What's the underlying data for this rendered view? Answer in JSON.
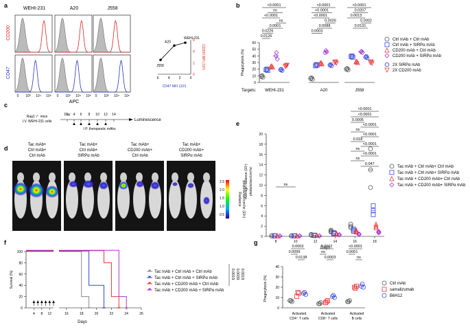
{
  "panels": {
    "a": {
      "label": "a",
      "cell_lines": [
        "WEHI-231",
        "A20",
        "J558"
      ],
      "row_labels": [
        "CD200",
        "CD47"
      ],
      "x_label": "APC",
      "x_ticks": [
        "0",
        "10³",
        "10⁴",
        "10⁵"
      ],
      "inset": {
        "points": [
          {
            "name": "WEHI-231",
            "cd47": 1.0,
            "cd200": 5.5
          },
          {
            "name": "A20",
            "cd47": 3.0,
            "cd200": 5.0
          },
          {
            "name": "J558",
            "cd47": 5.5,
            "cd200": 2.5
          }
        ],
        "x_label": "CD47 MFI (10³)",
        "y_label": "CD200 MFI (10³)",
        "x_ticks": [
          "6",
          "4",
          "2",
          "0"
        ],
        "y_ticks": [
          "0",
          "2",
          "4",
          "6"
        ]
      }
    },
    "b": {
      "label": "b",
      "y_label": "Phagocytosis (%)",
      "y_ticks": [
        "0",
        "10",
        "20",
        "30",
        "40",
        "50",
        "60"
      ],
      "targets_label": "Targets:",
      "targets": [
        "WEHI-231",
        "A20",
        "J558"
      ],
      "legend": [
        "Ctrl mAb + Ctrl mAb",
        "Ctrl mAb + SIRPα mAb",
        "CD200 mAb + Ctrl mAb",
        "CD200 mAb + SIRPα mAb",
        "2X SIRPα mAb",
        "2X CD200 mAb"
      ],
      "colors": [
        "#555555",
        "#3344dd",
        "#ee3333",
        "#aa33cc",
        "#3344dd",
        "#ee3333"
      ],
      "pvalues": {
        "WEHI-231": [
          "<0.0001",
          "ns",
          "<0.0001",
          "ns",
          "0.0001",
          "0.0226",
          "0.0126"
        ],
        "A20": [
          "<0.0001",
          "<0.0001",
          "<0.0001",
          "0.0026",
          "0.0088",
          "0.0003"
        ],
        "J558": [
          "<0.0001",
          "0.0207",
          "0.0013",
          "0.0002",
          "0.0131"
        ]
      },
      "chart_data": {
        "type": "scatter",
        "categories": [
          "WEHI-231",
          "A20",
          "J558"
        ],
        "series": [
          {
            "name": "Ctrl mAb + Ctrl mAb",
            "values": [
              [
                9,
                10,
                8
              ],
              [
                6,
                7,
                5
              ],
              [
                20,
                21,
                19
              ]
            ]
          },
          {
            "name": "Ctrl mAb + SIRPα mAb",
            "values": [
              [
                19,
                20,
                18
              ],
              [
                25,
                27,
                26
              ],
              [
                39,
                40,
                38
              ]
            ]
          },
          {
            "name": "CD200 mAb + Ctrl mAb",
            "values": [
              [
                24,
                25,
                23
              ],
              [
                29,
                30,
                28
              ],
              [
                31,
                32,
                30
              ]
            ]
          },
          {
            "name": "CD200 mAb + SIRPα mAb",
            "values": [
              [
                40,
                45,
                35
              ],
              [
                45,
                48,
                46
              ],
              [
                46,
                47,
                45
              ]
            ]
          },
          {
            "name": "2X SIRPα mAb",
            "values": [
              [
                19,
                20,
                18
              ],
              [
                26,
                27,
                25
              ],
              [
                38,
                39,
                37
              ]
            ]
          },
          {
            "name": "2X CD200 mAb",
            "values": [
              [
                24,
                25,
                26
              ],
              [
                30,
                31,
                29
              ],
              [
                30,
                31,
                29
              ]
            ]
          }
        ],
        "ylim": [
          0,
          60
        ]
      }
    },
    "c": {
      "label": "c",
      "line1": "Rag1⁻/⁻ mice",
      "line2": "I.V. WEHI-231 cells",
      "day_label": "Day",
      "days": [
        "1",
        "4",
        "6",
        "8",
        "10",
        "12",
        "14"
      ],
      "treatment": "I.P. therapeutic mAbs",
      "end_label": "Luminescence"
    },
    "d": {
      "label": "d",
      "groups": [
        [
          "Tac mAb+",
          "Ctrl mAb+",
          "Ctrl mAb"
        ],
        [
          "Tac mAb+",
          "Ctrl mAb+",
          "SIRPα mAb"
        ],
        [
          "Tac mAb+",
          "CD200 mAb+",
          "Ctrl mAb"
        ],
        [
          "Tac mAb+",
          "CD200 mAb+",
          "SIRPα mAb"
        ]
      ],
      "scale_title": "Radiance",
      "scale_units": "photons/sec/cm²/sr (10⁶)",
      "scale_ticks": [
        "2.5",
        "2.0",
        "1.5",
        "1.0",
        "0.5"
      ]
    },
    "e": {
      "label": "e",
      "y_label": "Average radiance (10⁷)",
      "y_units": "photons/sec/cm²/sr",
      "y_ticks": [
        "0",
        "2",
        "4",
        "6",
        "8",
        "10",
        "12",
        "14",
        "16",
        "18",
        "20"
      ],
      "x_label": "Days",
      "x_ticks": [
        "8",
        "10",
        "12",
        "14",
        "16",
        "18"
      ],
      "pvalues": [
        "<0.0001",
        "<0.0001",
        "0.0005",
        "<0.0001",
        "ns",
        "<0.0001",
        "0.018",
        "<0.0001",
        "ns",
        "<0.0001",
        "ns",
        "0.047",
        "ns"
      ],
      "legend": [
        "Tac mAb + Ctrl mAb+ Ctrl mAb",
        "Tac mAb + Ctrl mAb+ SIRPα mAb",
        "Tac mAb + CD200 mAb+ Ctrl mAb",
        "Tac mAb + CD200 mAb+ SIRPα mAb"
      ],
      "colors": [
        "#555555",
        "#3344dd",
        "#ee3333",
        "#aa33cc"
      ],
      "chart_data": {
        "type": "scatter",
        "x": [
          8,
          10,
          12,
          14,
          16,
          18
        ],
        "series": [
          {
            "name": "Tac mAb + Ctrl mAb+ Ctrl mAb",
            "values": [
              0.1,
              0.1,
              0.3,
              1.0,
              2.0,
              13.0
            ]
          },
          {
            "name": "Tac mAb + Ctrl mAb+ SIRPα mAb",
            "values": [
              0.1,
              0.1,
              0.2,
              0.6,
              1.2,
              5.0
            ]
          },
          {
            "name": "Tac mAb + CD200 mAb+ Ctrl mAb",
            "values": [
              0.1,
              0.1,
              0.2,
              0.5,
              1.0,
              2.0
            ]
          },
          {
            "name": "Tac mAb + CD200 mAb+ SIRPα mAb",
            "values": [
              0.1,
              0.1,
              0.1,
              0.3,
              0.4,
              0.8
            ]
          }
        ],
        "ylim": [
          0,
          20
        ]
      }
    },
    "f": {
      "label": "f",
      "y_label": "Survival (%)",
      "y_ticks": [
        "0",
        "20",
        "40",
        "60",
        "80",
        "100"
      ],
      "x_label": "Days",
      "x_ticks_left": [
        "4",
        "8",
        "12"
      ],
      "x_ticks_right": [
        "16",
        "18",
        "20",
        "22",
        "24",
        "26"
      ],
      "legend": [
        "Tac mAb + Ctrl mAb + Ctrl mAb",
        "Tac mAb + Ctrl mAb + SIRPα mAb",
        "Tac mAb + CD200 mAb + Ctrl mAb",
        "Tac mAb + CD200 mAb + SIRPα mAb"
      ],
      "colors": [
        "#888888",
        "#3344dd",
        "#ee3333",
        "#aa33cc"
      ],
      "pvalues": [
        "0.0019",
        "0.0039",
        "0.0019"
      ],
      "chart_data": {
        "type": "line",
        "series": [
          {
            "name": "Tac mAb + Ctrl mAb + Ctrl mAb",
            "x": [
              0,
              18,
              18,
              19,
              19
            ],
            "y": [
              100,
              100,
              20,
              20,
              0
            ]
          },
          {
            "name": "Tac mAb + Ctrl mAb + SIRPα mAb",
            "x": [
              0,
              19,
              19,
              21,
              21
            ],
            "y": [
              100,
              100,
              40,
              40,
              0
            ]
          },
          {
            "name": "Tac mAb + CD200 mAb + Ctrl mAb",
            "x": [
              0,
              21,
              21,
              22,
              22,
              23,
              23
            ],
            "y": [
              100,
              100,
              80,
              80,
              20,
              20,
              0
            ]
          },
          {
            "name": "Tac mAb + CD200 mAb + SIRPα mAb",
            "x": [
              0,
              23,
              23,
              24,
              24
            ],
            "y": [
              100,
              100,
              20,
              20,
              0
            ]
          }
        ],
        "ylim": [
          0,
          100
        ]
      }
    },
    "g": {
      "label": "g",
      "y_label": "Phagocytosis (%)",
      "y_ticks": [
        "0",
        "10",
        "20",
        "30",
        "40"
      ],
      "categories": [
        [
          "Activated",
          "CD4⁺ T cells"
        ],
        [
          "Activated",
          "CD8⁺ T cells"
        ],
        [
          "Activated",
          "B cells"
        ]
      ],
      "legend": [
        "Ctrl mAb",
        "samalizumab",
        "B6H12"
      ],
      "colors": [
        "#555555",
        "#ee3333",
        "#3344dd"
      ],
      "pvalues": [
        "0.0003",
        "0.0099",
        "0.0138",
        "0.0002",
        "ns",
        "0.0003",
        "<0.0001",
        "0.0001",
        "ns"
      ],
      "chart_data": {
        "type": "scatter",
        "categories": [
          "Activated CD4⁺ T cells",
          "Activated CD8⁺ T cells",
          "Activated B cells"
        ],
        "series": [
          {
            "name": "Ctrl mAb",
            "values": [
              [
                7,
                7,
                6
              ],
              [
                4,
                4,
                5
              ],
              [
                6,
                6,
                7
              ]
            ]
          },
          {
            "name": "samalizumab",
            "values": [
              [
                11,
                15,
                14
              ],
              [
                5,
                6,
                7
              ],
              [
                20,
                19,
                21
              ]
            ]
          },
          {
            "name": "B6H12",
            "values": [
              [
                14,
                15,
                13
              ],
              [
                11,
                12,
                10
              ],
              [
                21,
                23,
                20
              ]
            ]
          }
        ],
        "ylim": [
          0,
          40
        ]
      }
    }
  }
}
